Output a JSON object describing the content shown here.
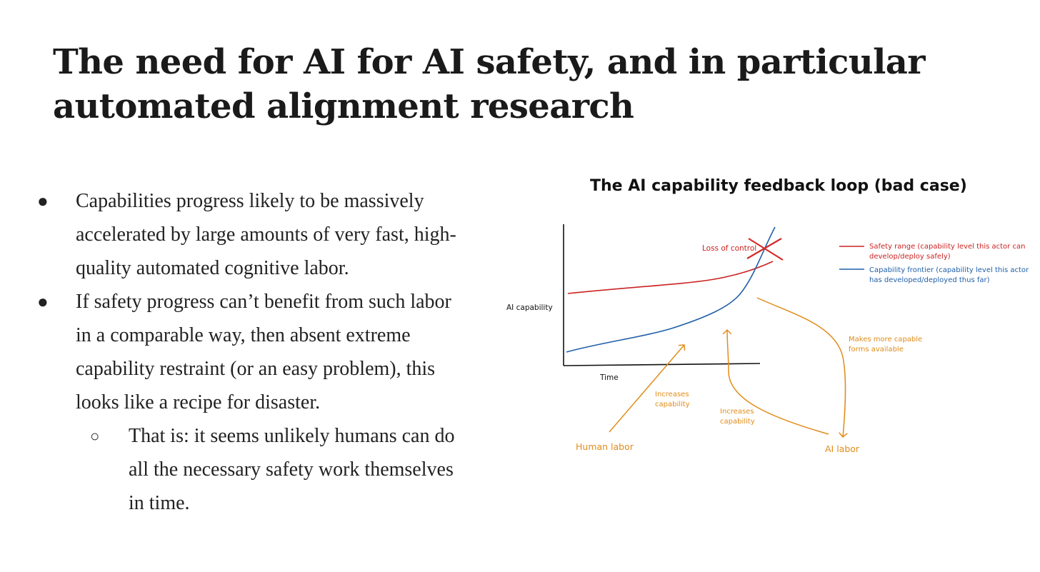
{
  "slide": {
    "title": "The need for AI for AI safety, and in particular automated alignment research"
  },
  "bullets": [
    {
      "marker": "●",
      "text": "Capabilities progress likely to be massively accelerated by large amounts of very fast, high-quality automated cognitive labor."
    },
    {
      "marker": "●",
      "text": "If safety progress can’t benefit from such labor in a comparable way, then absent extreme capability restraint (or an easy problem), this looks like a recipe for disaster."
    }
  ],
  "sub_bullets": [
    {
      "marker": "○",
      "text": "That is: it seems unlikely humans can do all the necessary safety work themselves in time."
    }
  ],
  "diagram": {
    "title": "The AI capability feedback loop (bad case)",
    "y_axis_label": "AI capability",
    "x_axis_label": "Time",
    "loss_of_control_label": "Loss of control",
    "legend": [
      {
        "line1": "Safety range (capability level this actor can",
        "line2": "develop/deploy safely)",
        "color": "#cc2222"
      },
      {
        "line1": "Capability frontier (capability level this actor",
        "line2": "has developed/deployed thus far)",
        "color": "#1f5fa8"
      }
    ],
    "annotations": {
      "human_labor": "Human labor",
      "ai_labor": "AI labor",
      "increases_capability_1_line1": "Increases",
      "increases_capability_1_line2": "capability",
      "increases_capability_2_line1": "Increases",
      "increases_capability_2_line2": "capability",
      "makes_more_capable_line1": "Makes more capable",
      "makes_more_capable_line2": "forms available"
    },
    "colors": {
      "safety": "#cc2222",
      "frontier": "#1f5fa8",
      "labor": "#e08c1a",
      "axis": "#111111",
      "cross": "#d42a2a"
    }
  }
}
